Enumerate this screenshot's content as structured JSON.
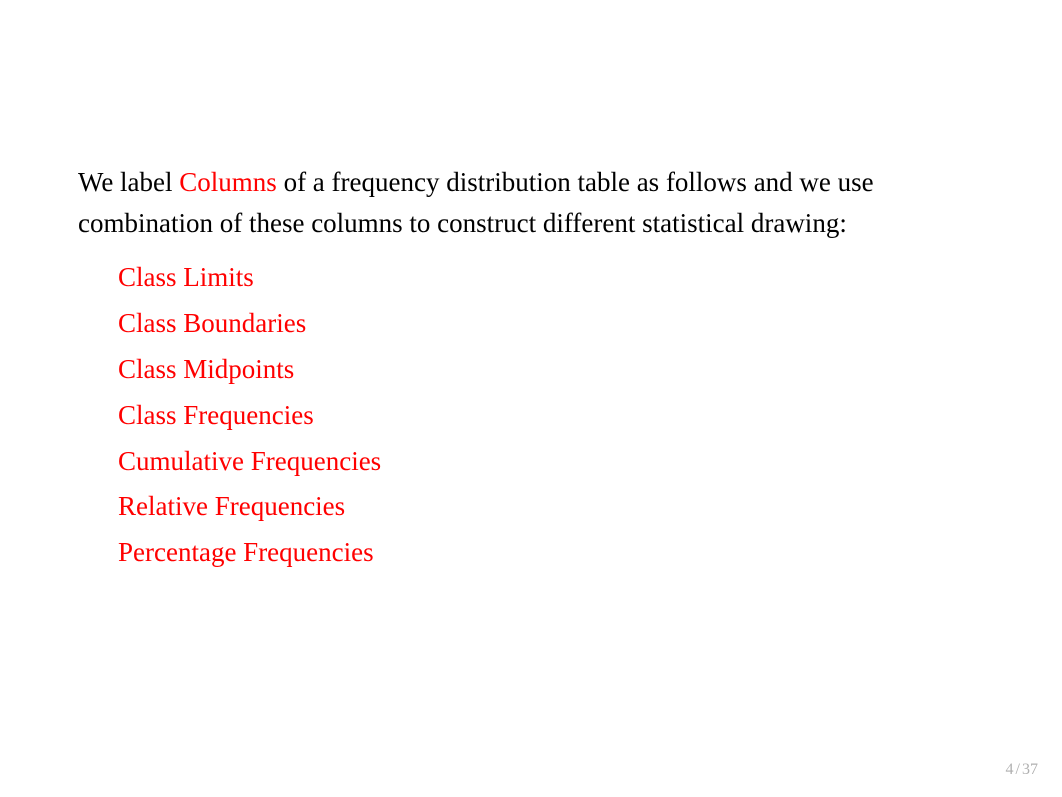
{
  "intro": {
    "prefix": "We label ",
    "highlighted": "Columns",
    "suffix": "  of a frequency distribution table as follows and we use combination of these columns to construct different statistical drawing:"
  },
  "items": [
    "Class Limits",
    "Class Boundaries",
    "Class Midpoints",
    "Class Frequencies",
    "Cumulative Frequencies",
    "Relative Frequencies",
    "Percentage Frequencies"
  ],
  "footer": {
    "current": "4",
    "separator": "/",
    "total": "37"
  },
  "colors": {
    "highlight": "#ff0000",
    "text": "#000000",
    "footer": "#b0b0b0",
    "background": "#ffffff"
  },
  "typography": {
    "body_fontsize": 27,
    "footer_fontsize": 16,
    "font_family": "Times New Roman"
  }
}
